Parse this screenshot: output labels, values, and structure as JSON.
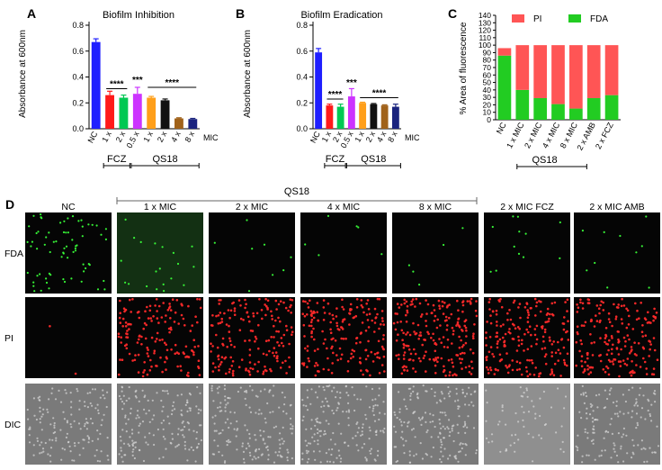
{
  "panels": {
    "A": "A",
    "B": "B",
    "C": "C",
    "D": "D"
  },
  "colors": {
    "blue": "#1f1fff",
    "red": "#ff1a1a",
    "green": "#00c853",
    "magenta": "#cc33ff",
    "orange": "#ff9f1a",
    "black": "#111111",
    "brown": "#a0621a",
    "navy": "#1a237e",
    "pi": "#ff5555",
    "fda": "#22cc22"
  },
  "chart_data": [
    {
      "id": "A",
      "type": "bar",
      "title": "Biofilm Inhibition",
      "ylabel": "Absorbance at 600nm",
      "ylim": [
        0,
        0.8
      ],
      "yticks": [
        "0.0",
        "0.2",
        "0.4",
        "0.6",
        "0.8"
      ],
      "categories": [
        "NC",
        "1 x",
        "2 x",
        "0.5 x",
        "1 x",
        "2 x",
        "4 x",
        "8 x"
      ],
      "values": [
        0.67,
        0.26,
        0.24,
        0.27,
        0.24,
        0.22,
        0.08,
        0.075
      ],
      "errors": [
        0.025,
        0.03,
        0.02,
        0.05,
        0.01,
        0.01,
        0.005,
        0.005
      ],
      "bar_colors": [
        "#1f1fff",
        "#ff1a1a",
        "#00c853",
        "#cc33ff",
        "#ff9f1a",
        "#111111",
        "#a0621a",
        "#1a237e"
      ],
      "x_suffix": "MIC",
      "significance": [
        {
          "label": "****",
          "from": 1,
          "to": 2,
          "y": 0.31
        },
        {
          "label": "***",
          "from": 3,
          "to": 3,
          "y": 0.34
        },
        {
          "label": "****",
          "from": 4,
          "to": 7,
          "y": 0.32
        }
      ],
      "groups": [
        {
          "label": "FCZ",
          "from": 1,
          "to": 2
        },
        {
          "label": "QS18",
          "from": 3,
          "to": 7
        }
      ]
    },
    {
      "id": "B",
      "type": "bar",
      "title": "Biofilm Eradication",
      "ylabel": "Absorbance at 600nm",
      "ylim": [
        0,
        0.8
      ],
      "yticks": [
        "0.0",
        "0.2",
        "0.4",
        "0.6",
        "0.8"
      ],
      "categories": [
        "NC",
        "1 x",
        "2 x",
        "0.5 x",
        "1 x",
        "2 x",
        "4 x",
        "8 x"
      ],
      "values": [
        0.59,
        0.18,
        0.17,
        0.25,
        0.2,
        0.19,
        0.18,
        0.17
      ],
      "errors": [
        0.03,
        0.01,
        0.02,
        0.06,
        0.005,
        0.005,
        0.005,
        0.02
      ],
      "bar_colors": [
        "#1f1fff",
        "#ff1a1a",
        "#00c853",
        "#cc33ff",
        "#ff9f1a",
        "#111111",
        "#a0621a",
        "#1a237e"
      ],
      "x_suffix": "MIC",
      "significance": [
        {
          "label": "****",
          "from": 1,
          "to": 2,
          "y": 0.23
        },
        {
          "label": "***",
          "from": 3,
          "to": 3,
          "y": 0.32
        },
        {
          "label": "****",
          "from": 4,
          "to": 7,
          "y": 0.24
        }
      ],
      "groups": [
        {
          "label": "FCZ",
          "from": 1,
          "to": 2
        },
        {
          "label": "QS18",
          "from": 3,
          "to": 7
        }
      ]
    },
    {
      "id": "C",
      "type": "bar",
      "stacked": true,
      "ylabel": "% Area of fluorescence",
      "ylim": [
        0,
        140
      ],
      "yticks": [
        "0",
        "10",
        "20",
        "30",
        "40",
        "50",
        "60",
        "70",
        "80",
        "90",
        "100",
        "110",
        "120",
        "130",
        "140"
      ],
      "categories": [
        "NC",
        "1 x MIC",
        "2 x MIC",
        "4 x MIC",
        "8 x MIC",
        "2 x AMB",
        "2 x FCZ"
      ],
      "series": [
        {
          "name": "FDA",
          "values": [
            86,
            40,
            29,
            21,
            15,
            29,
            33
          ]
        },
        {
          "name": "PI",
          "values": [
            10,
            60,
            71,
            79,
            85,
            71,
            67
          ]
        }
      ],
      "legend": [
        "PI",
        "FDA"
      ],
      "groups": [
        {
          "label": "QS18",
          "from": 1,
          "to": 4
        }
      ]
    }
  ],
  "micrographs": {
    "columns": [
      "NC",
      "1 x MIC",
      "2 x MIC",
      "4 x MIC",
      "8 x MIC",
      "2 x MIC FCZ",
      "2 x MIC AMB"
    ],
    "rows": [
      "FDA",
      "PI",
      "DIC"
    ],
    "group_label": "QS18",
    "density": {
      "FDA": [
        70,
        20,
        8,
        6,
        5,
        12,
        10
      ],
      "PI": [
        2,
        160,
        170,
        180,
        210,
        200,
        190
      ],
      "DIC": [
        140,
        160,
        160,
        170,
        170,
        60,
        140
      ]
    }
  }
}
